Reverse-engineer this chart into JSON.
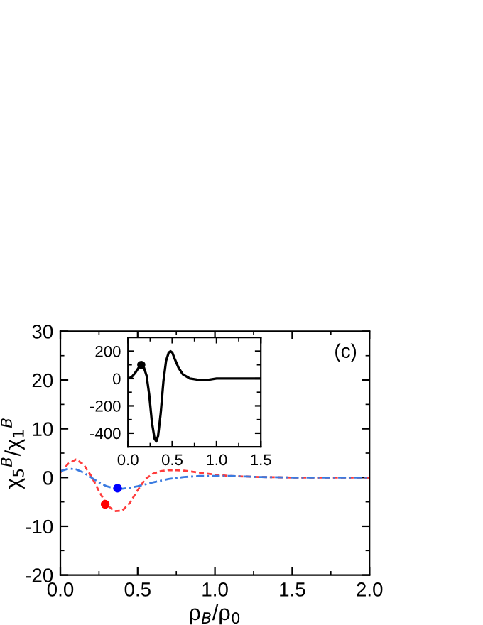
{
  "chart_data": [
    {
      "type": "line",
      "xlabel": "ρ$_{B}$/ρ$_{0}$",
      "ylabel": "χ$_{5}$$^{B}$/χ$_{1}$$^{B}$",
      "annotations": [
        "(c)"
      ],
      "xlim": [
        0,
        2
      ],
      "ylim": [
        -20,
        30
      ],
      "xticks": [
        {
          "value": 0,
          "label": "0.0"
        },
        {
          "value": 0.5,
          "label": "0.5"
        },
        {
          "value": 1,
          "label": "1.0"
        },
        {
          "value": 1.5,
          "label": "1.5"
        },
        {
          "value": 2,
          "label": "2.0"
        }
      ],
      "yticks": [
        -20,
        -10,
        0,
        10,
        20,
        30
      ],
      "grid": false,
      "legend": false,
      "series": [
        {
          "color": "#ff3b3b",
          "line_style": "dashed",
          "marker": "none",
          "x": [
            0,
            0.05,
            0.1,
            0.15,
            0.2,
            0.25,
            0.3,
            0.35,
            0.4,
            0.45,
            0.5,
            0.55,
            0.6,
            0.65,
            0.7,
            0.75,
            0.8,
            0.9,
            1.0,
            1.1,
            1.2,
            1.3,
            1.5,
            1.7,
            2.0
          ],
          "values": [
            1.0,
            2.8,
            3.7,
            2.7,
            0.3,
            -2.8,
            -5.6,
            -6.9,
            -6.8,
            -5.2,
            -2.6,
            -0.3,
            0.8,
            1.3,
            1.5,
            1.5,
            1.4,
            1.0,
            0.6,
            0.3,
            0.2,
            0.1,
            0.0,
            0.0,
            0.0
          ]
        },
        {
          "color": "#3a7be0",
          "line_style": "dashdot",
          "marker": "none",
          "x": [
            0,
            0.05,
            0.1,
            0.15,
            0.2,
            0.25,
            0.3,
            0.35,
            0.4,
            0.45,
            0.5,
            0.55,
            0.6,
            0.7,
            0.8,
            0.9,
            1.0,
            1.1,
            1.2,
            1.3,
            1.5,
            1.7,
            2.0
          ],
          "values": [
            1.3,
            1.8,
            1.7,
            1.0,
            0.0,
            -1.0,
            -1.8,
            -2.2,
            -2.3,
            -2.1,
            -1.8,
            -1.4,
            -1.0,
            -0.3,
            0.1,
            0.3,
            0.3,
            0.3,
            0.2,
            0.1,
            0.0,
            0.0,
            0.0
          ]
        },
        {
          "type": "scatter",
          "color": "#ff0000",
          "marker": "circle",
          "x": [
            0.29
          ],
          "values": [
            -5.5
          ]
        },
        {
          "type": "scatter",
          "color": "#0000ff",
          "marker": "circle",
          "x": [
            0.37
          ],
          "values": [
            -2.2
          ]
        }
      ]
    },
    {
      "type": "line",
      "xlim": [
        0,
        1.5
      ],
      "ylim": [
        -500,
        300
      ],
      "xticks": [
        {
          "value": 0,
          "label": "0.0"
        },
        {
          "value": 0.5,
          "label": "0.5"
        },
        {
          "value": 1,
          "label": "1.0"
        },
        {
          "value": 1.5,
          "label": "1.5"
        }
      ],
      "yticks": [
        -400,
        -200,
        0,
        200
      ],
      "grid": false,
      "legend": false,
      "series": [
        {
          "color": "#000000",
          "line_style": "solid",
          "marker": "none",
          "x": [
            0,
            0.04,
            0.08,
            0.12,
            0.15,
            0.18,
            0.21,
            0.24,
            0.27,
            0.3,
            0.32,
            0.34,
            0.37,
            0.4,
            0.43,
            0.46,
            0.48,
            0.5,
            0.53,
            0.57,
            0.62,
            0.7,
            0.8,
            0.9,
            1.0,
            1.2,
            1.5
          ],
          "values": [
            0,
            10,
            40,
            80,
            100,
            80,
            20,
            -120,
            -320,
            -440,
            -460,
            -420,
            -250,
            -20,
            130,
            190,
            200,
            190,
            140,
            80,
            30,
            0,
            -10,
            -10,
            0,
            0,
            0
          ]
        },
        {
          "type": "scatter",
          "color": "#000000",
          "marker": "circle",
          "x": [
            0.15
          ],
          "values": [
            100
          ]
        }
      ]
    }
  ]
}
